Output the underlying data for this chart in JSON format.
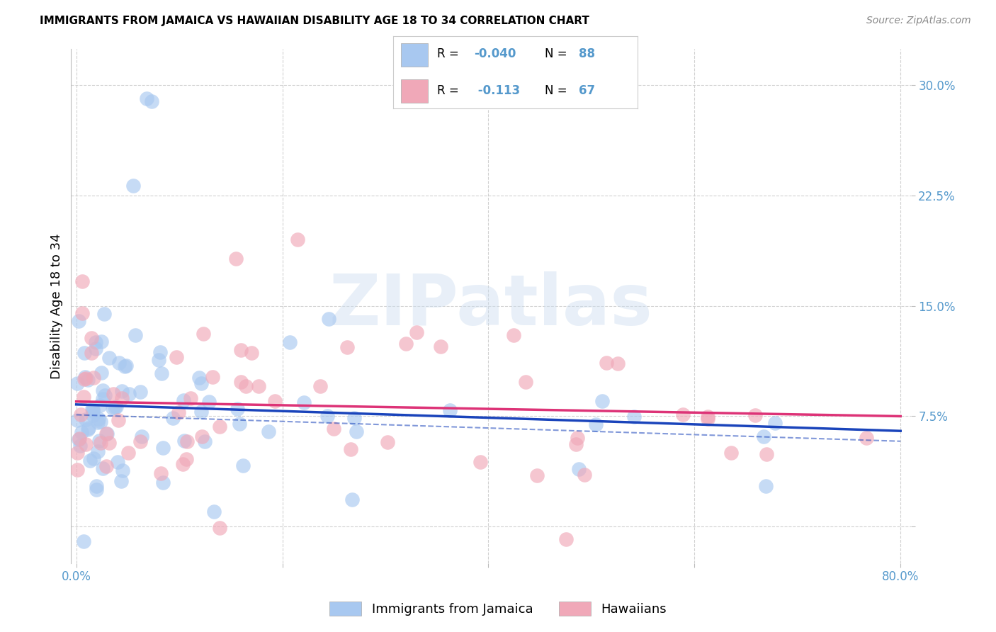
{
  "title": "IMMIGRANTS FROM JAMAICA VS HAWAIIAN DISABILITY AGE 18 TO 34 CORRELATION CHART",
  "source": "Source: ZipAtlas.com",
  "ylabel": "Disability Age 18 to 34",
  "xlim": [
    -0.005,
    0.81
  ],
  "ylim": [
    -0.025,
    0.325
  ],
  "yticks": [
    0.0,
    0.075,
    0.15,
    0.225,
    0.3
  ],
  "ytick_labels": [
    "",
    "7.5%",
    "15.0%",
    "22.5%",
    "30.0%"
  ],
  "xticks": [
    0.0,
    0.2,
    0.4,
    0.6,
    0.8
  ],
  "xtick_labels": [
    "0.0%",
    "",
    "",
    "",
    "80.0%"
  ],
  "grid_color": "#cccccc",
  "background_color": "#ffffff",
  "jamaica_color": "#a8c8f0",
  "hawaii_color": "#f0a8b8",
  "jamaica_line_color": "#1a44bb",
  "hawaii_line_color": "#dd3377",
  "R_jamaica": -0.04,
  "N_jamaica": 88,
  "R_hawaii": -0.113,
  "N_hawaii": 67,
  "legend_label_1": "Immigrants from Jamaica",
  "legend_label_2": "Hawaiians",
  "watermark": "ZIPatlas",
  "tick_color": "#5599cc",
  "title_fontsize": 11,
  "source_fontsize": 10,
  "ylabel_fontsize": 13,
  "tick_fontsize": 12
}
